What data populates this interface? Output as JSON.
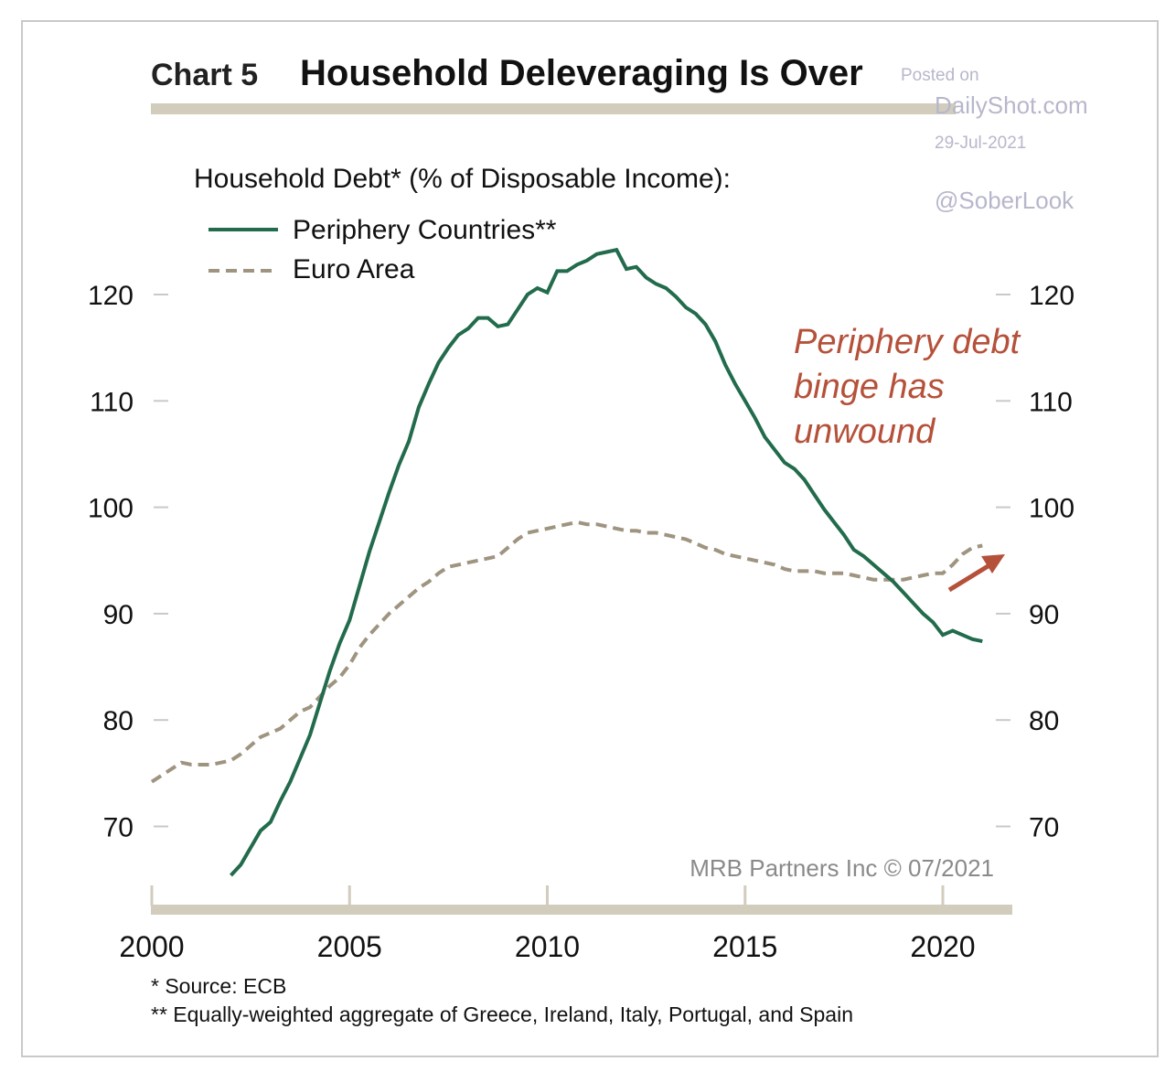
{
  "header": {
    "chart_number": "Chart 5",
    "title": "Household Deleveraging Is Over"
  },
  "watermark": {
    "line1": "Posted on",
    "line2": "DailyShot.com",
    "date": "29-Jul-2021",
    "handle": "@SoberLook"
  },
  "credit": "MRB Partners Inc © 07/2021",
  "annotation": [
    "Periphery debt",
    "binge has",
    "unwound"
  ],
  "footnotes": {
    "note1": "*  Source: ECB",
    "note2": "** Equally-weighted aggregate of Greece, Ireland, Italy, Portugal, and Spain"
  },
  "colors": {
    "periphery": "#226b4c",
    "euro_area": "#9e9480",
    "axis_bar": "#d2ccbd",
    "annotation": "#b5513a"
  },
  "chart_data": {
    "type": "line",
    "title": "Household Deleveraging Is Over",
    "subtitle": "Household Debt* (% of Disposable Income):",
    "xlabel": "",
    "ylabel": "% of Disposable Income",
    "xlim": [
      2000,
      2021.75
    ],
    "ylim": [
      62,
      127
    ],
    "x_ticks": [
      2000,
      2005,
      2010,
      2015,
      2020
    ],
    "y_ticks": [
      70,
      80,
      90,
      100,
      110,
      120
    ],
    "legend_position": "top-left",
    "series": [
      {
        "name": "Periphery Countries**",
        "style": "solid",
        "points": [
          [
            2002.0,
            65.4
          ],
          [
            2002.25,
            66.4
          ],
          [
            2002.5,
            68.0
          ],
          [
            2002.75,
            69.6
          ],
          [
            2003.0,
            70.4
          ],
          [
            2003.25,
            72.4
          ],
          [
            2003.5,
            74.2
          ],
          [
            2003.75,
            76.4
          ],
          [
            2004.0,
            78.6
          ],
          [
            2004.25,
            81.6
          ],
          [
            2004.5,
            84.6
          ],
          [
            2004.75,
            87.2
          ],
          [
            2005.0,
            89.4
          ],
          [
            2005.25,
            92.6
          ],
          [
            2005.5,
            95.8
          ],
          [
            2005.75,
            98.6
          ],
          [
            2006.0,
            101.4
          ],
          [
            2006.25,
            104.0
          ],
          [
            2006.5,
            106.2
          ],
          [
            2006.75,
            109.4
          ],
          [
            2007.0,
            111.6
          ],
          [
            2007.25,
            113.6
          ],
          [
            2007.5,
            115.0
          ],
          [
            2007.75,
            116.2
          ],
          [
            2008.0,
            116.8
          ],
          [
            2008.25,
            117.8
          ],
          [
            2008.5,
            117.8
          ],
          [
            2008.75,
            117.0
          ],
          [
            2009.0,
            117.2
          ],
          [
            2009.25,
            118.6
          ],
          [
            2009.5,
            120.0
          ],
          [
            2009.75,
            120.6
          ],
          [
            2010.0,
            120.2
          ],
          [
            2010.25,
            122.2
          ],
          [
            2010.5,
            122.2
          ],
          [
            2010.75,
            122.8
          ],
          [
            2011.0,
            123.2
          ],
          [
            2011.25,
            123.8
          ],
          [
            2011.5,
            124.0
          ],
          [
            2011.75,
            124.2
          ],
          [
            2012.0,
            122.4
          ],
          [
            2012.25,
            122.6
          ],
          [
            2012.5,
            121.6
          ],
          [
            2012.75,
            121.0
          ],
          [
            2013.0,
            120.6
          ],
          [
            2013.25,
            119.8
          ],
          [
            2013.5,
            118.8
          ],
          [
            2013.75,
            118.2
          ],
          [
            2014.0,
            117.2
          ],
          [
            2014.25,
            115.6
          ],
          [
            2014.5,
            113.4
          ],
          [
            2014.75,
            111.6
          ],
          [
            2015.0,
            110.0
          ],
          [
            2015.25,
            108.4
          ],
          [
            2015.5,
            106.6
          ],
          [
            2015.75,
            105.4
          ],
          [
            2016.0,
            104.2
          ],
          [
            2016.25,
            103.6
          ],
          [
            2016.5,
            102.6
          ],
          [
            2016.75,
            101.2
          ],
          [
            2017.0,
            99.8
          ],
          [
            2017.25,
            98.6
          ],
          [
            2017.5,
            97.4
          ],
          [
            2017.75,
            96.0
          ],
          [
            2018.0,
            95.4
          ],
          [
            2018.25,
            94.6
          ],
          [
            2018.5,
            93.8
          ],
          [
            2018.75,
            93.0
          ],
          [
            2019.0,
            92.0
          ],
          [
            2019.25,
            91.0
          ],
          [
            2019.5,
            90.0
          ],
          [
            2019.75,
            89.2
          ],
          [
            2020.0,
            88.0
          ],
          [
            2020.25,
            88.4
          ],
          [
            2020.5,
            88.0
          ],
          [
            2020.75,
            87.6
          ],
          [
            2021.0,
            87.4
          ]
        ]
      },
      {
        "name": "Euro Area",
        "style": "dashed",
        "points": [
          [
            2000.0,
            74.2
          ],
          [
            2000.25,
            74.8
          ],
          [
            2000.5,
            75.4
          ],
          [
            2000.75,
            76.0
          ],
          [
            2001.0,
            75.8
          ],
          [
            2001.25,
            75.8
          ],
          [
            2001.5,
            75.8
          ],
          [
            2001.75,
            76.0
          ],
          [
            2002.0,
            76.2
          ],
          [
            2002.25,
            76.8
          ],
          [
            2002.5,
            77.6
          ],
          [
            2002.75,
            78.4
          ],
          [
            2003.0,
            78.8
          ],
          [
            2003.25,
            79.2
          ],
          [
            2003.5,
            80.0
          ],
          [
            2003.75,
            80.8
          ],
          [
            2004.0,
            81.2
          ],
          [
            2004.25,
            82.2
          ],
          [
            2004.5,
            83.2
          ],
          [
            2004.75,
            84.0
          ],
          [
            2005.0,
            85.2
          ],
          [
            2005.25,
            86.8
          ],
          [
            2005.5,
            88.0
          ],
          [
            2005.75,
            89.0
          ],
          [
            2006.0,
            90.0
          ],
          [
            2006.25,
            90.8
          ],
          [
            2006.5,
            91.6
          ],
          [
            2006.75,
            92.4
          ],
          [
            2007.0,
            93.0
          ],
          [
            2007.25,
            93.8
          ],
          [
            2007.5,
            94.4
          ],
          [
            2007.75,
            94.6
          ],
          [
            2008.0,
            94.8
          ],
          [
            2008.25,
            95.0
          ],
          [
            2008.5,
            95.2
          ],
          [
            2008.75,
            95.4
          ],
          [
            2009.0,
            96.2
          ],
          [
            2009.25,
            97.0
          ],
          [
            2009.5,
            97.6
          ],
          [
            2009.75,
            97.8
          ],
          [
            2010.0,
            98.0
          ],
          [
            2010.25,
            98.2
          ],
          [
            2010.5,
            98.4
          ],
          [
            2010.75,
            98.6
          ],
          [
            2011.0,
            98.4
          ],
          [
            2011.25,
            98.4
          ],
          [
            2011.5,
            98.2
          ],
          [
            2011.75,
            98.0
          ],
          [
            2012.0,
            97.8
          ],
          [
            2012.25,
            97.8
          ],
          [
            2012.5,
            97.6
          ],
          [
            2012.75,
            97.6
          ],
          [
            2013.0,
            97.4
          ],
          [
            2013.25,
            97.2
          ],
          [
            2013.5,
            97.0
          ],
          [
            2013.75,
            96.6
          ],
          [
            2014.0,
            96.2
          ],
          [
            2014.25,
            96.0
          ],
          [
            2014.5,
            95.6
          ],
          [
            2014.75,
            95.4
          ],
          [
            2015.0,
            95.2
          ],
          [
            2015.25,
            95.0
          ],
          [
            2015.5,
            94.8
          ],
          [
            2015.75,
            94.6
          ],
          [
            2016.0,
            94.2
          ],
          [
            2016.25,
            94.0
          ],
          [
            2016.5,
            94.0
          ],
          [
            2016.75,
            94.0
          ],
          [
            2017.0,
            93.8
          ],
          [
            2017.25,
            93.8
          ],
          [
            2017.5,
            93.8
          ],
          [
            2017.75,
            93.6
          ],
          [
            2018.0,
            93.4
          ],
          [
            2018.25,
            93.2
          ],
          [
            2018.5,
            93.2
          ],
          [
            2018.75,
            93.2
          ],
          [
            2019.0,
            93.2
          ],
          [
            2019.25,
            93.4
          ],
          [
            2019.5,
            93.6
          ],
          [
            2019.75,
            93.8
          ],
          [
            2020.0,
            93.8
          ],
          [
            2020.25,
            94.6
          ],
          [
            2020.5,
            95.6
          ],
          [
            2020.75,
            96.2
          ],
          [
            2021.0,
            96.4
          ]
        ]
      }
    ]
  }
}
